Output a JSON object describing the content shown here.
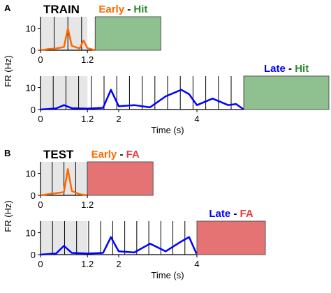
{
  "chart_data": [
    {
      "panel": "A",
      "header": "TRAIN",
      "type": "line",
      "series": [
        {
          "name": "Early",
          "outcome": "Hit",
          "color": "#ff6a00",
          "fill": "#8fc08f",
          "x": [
            0,
            0.2,
            0.4,
            0.6,
            0.7,
            0.8,
            1.0,
            1.1,
            1.2,
            1.4
          ],
          "y": [
            0,
            0.5,
            0.8,
            1.5,
            10,
            2,
            0.8,
            4.5,
            1,
            0
          ]
        },
        {
          "name": "Late",
          "outcome": "Hit",
          "color": "#0000ff",
          "fill": "#8fc08f",
          "x": [
            0,
            0.4,
            0.6,
            0.8,
            1.2,
            1.6,
            1.8,
            2.0,
            2.4,
            2.8,
            3.2,
            3.6,
            3.8,
            4.0,
            4.4,
            4.8,
            5.0,
            5.2
          ],
          "y": [
            0,
            0.5,
            2,
            0.6,
            0.4,
            0.8,
            9,
            1.5,
            2,
            1,
            6,
            9,
            7,
            2,
            5,
            2,
            2.5,
            0
          ]
        }
      ],
      "xticks": [
        "0",
        "1.2",
        "2",
        "4"
      ],
      "yticks": [
        "0",
        "10"
      ],
      "ylabel": "FR (Hz)",
      "xlabel": "Time (s)"
    },
    {
      "panel": "B",
      "header": "TEST",
      "type": "line",
      "series": [
        {
          "name": "Early",
          "outcome": "FA",
          "color": "#ff6a00",
          "fill": "#e67373",
          "x": [
            0,
            0.2,
            0.4,
            0.6,
            0.7,
            0.8,
            1.0,
            1.2
          ],
          "y": [
            0,
            0.5,
            1,
            1.5,
            12,
            2,
            0.5,
            0
          ]
        },
        {
          "name": "Late",
          "outcome": "FA",
          "color": "#0000ff",
          "fill": "#e67373",
          "x": [
            0,
            0.4,
            0.6,
            0.8,
            1.2,
            1.6,
            1.8,
            2.0,
            2.4,
            2.8,
            3.2,
            3.6,
            3.8,
            4.0
          ],
          "y": [
            0,
            0.5,
            4,
            0.8,
            0.5,
            0.8,
            8,
            1.5,
            1,
            5,
            1.5,
            6,
            8,
            0
          ]
        }
      ],
      "xticks": [
        "0",
        "1.2",
        "2",
        "4"
      ],
      "yticks": [
        "0",
        "10"
      ],
      "ylabel": "FR (Hz)",
      "xlabel": "Time (s)"
    }
  ],
  "separator": "-"
}
